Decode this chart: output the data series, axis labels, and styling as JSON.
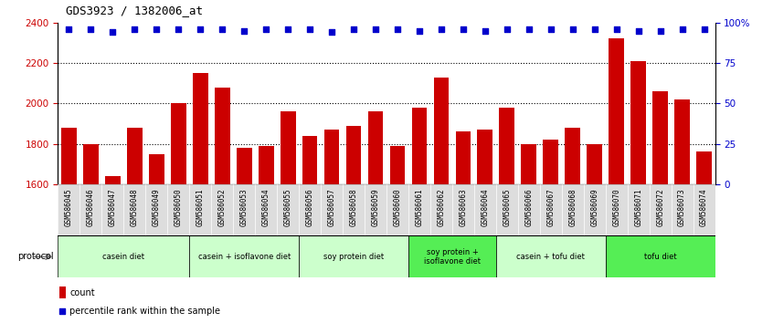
{
  "title": "GDS3923 / 1382006_at",
  "samples": [
    "GSM586045",
    "GSM586046",
    "GSM586047",
    "GSM586048",
    "GSM586049",
    "GSM586050",
    "GSM586051",
    "GSM586052",
    "GSM586053",
    "GSM586054",
    "GSM586055",
    "GSM586056",
    "GSM586057",
    "GSM586058",
    "GSM586059",
    "GSM586060",
    "GSM586061",
    "GSM586062",
    "GSM586063",
    "GSM586064",
    "GSM586065",
    "GSM586066",
    "GSM586067",
    "GSM586068",
    "GSM586069",
    "GSM586070",
    "GSM586071",
    "GSM586072",
    "GSM586073",
    "GSM586074"
  ],
  "counts": [
    1880,
    1800,
    1640,
    1880,
    1750,
    2000,
    2150,
    2080,
    1780,
    1790,
    1960,
    1840,
    1870,
    1890,
    1960,
    1790,
    1980,
    2130,
    1860,
    1870,
    1980,
    1800,
    1820,
    1880,
    1800,
    2320,
    2210,
    2060,
    2020,
    1760
  ],
  "percentile_ranks": [
    96,
    96,
    94,
    96,
    96,
    96,
    96,
    96,
    95,
    96,
    96,
    96,
    94,
    96,
    96,
    96,
    95,
    96,
    96,
    95,
    96,
    96,
    96,
    96,
    96,
    96,
    95,
    95,
    96,
    96
  ],
  "bar_color": "#CC0000",
  "dot_color": "#0000CC",
  "ylim_left": [
    1600,
    2400
  ],
  "ylim_right": [
    0,
    100
  ],
  "yticks_left": [
    1600,
    1800,
    2000,
    2200,
    2400
  ],
  "yticks_right": [
    0,
    25,
    50,
    75,
    100
  ],
  "ytick_labels_right": [
    "0",
    "25",
    "50",
    "75",
    "100%"
  ],
  "groups": [
    {
      "label": "casein diet",
      "start": 0,
      "end": 6,
      "color": "#CCFFCC"
    },
    {
      "label": "casein + isoflavone diet",
      "start": 6,
      "end": 11,
      "color": "#CCFFCC"
    },
    {
      "label": "soy protein diet",
      "start": 11,
      "end": 16,
      "color": "#CCFFCC"
    },
    {
      "label": "soy protein +\nisoflavone diet",
      "start": 16,
      "end": 20,
      "color": "#55DD55"
    },
    {
      "label": "casein + tofu diet",
      "start": 20,
      "end": 25,
      "color": "#CCFFCC"
    },
    {
      "label": "tofu diet",
      "start": 25,
      "end": 30,
      "color": "#55DD55"
    }
  ],
  "protocol_label": "protocol",
  "legend_count_label": "count",
  "legend_pct_label": "percentile rank within the sample",
  "bg_color": "#FFFFFF",
  "axis_label_color_left": "#CC0000",
  "axis_label_color_right": "#0000CC",
  "label_bg_color": "#DDDDDD"
}
